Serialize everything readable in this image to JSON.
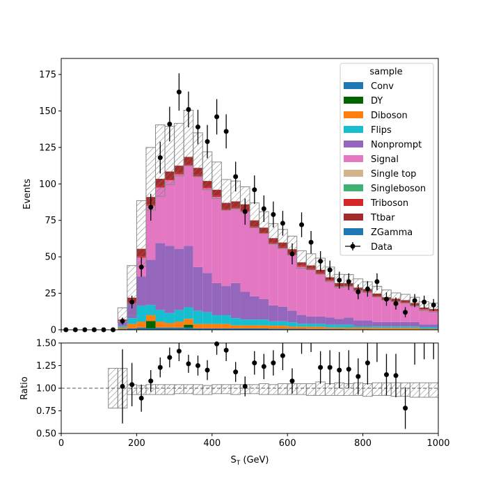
{
  "chart_data": [
    {
      "type": "bar",
      "subtype": "stacked-histogram",
      "ylabel": "Events",
      "xlim": [
        0,
        1000
      ],
      "ylim": [
        0,
        186
      ],
      "yticks": [
        0,
        25,
        50,
        75,
        100,
        125,
        150,
        175
      ],
      "bin_width": 25,
      "bin_edges_start": 0,
      "legend": {
        "title": "sample",
        "placement": "top-right"
      },
      "series": [
        {
          "name": "Conv",
          "color": "#1f77b4",
          "values": [
            0,
            0,
            0,
            0,
            0,
            0,
            0.5,
            1,
            1.5,
            1,
            1.5,
            1.5,
            1.5,
            1.5,
            1,
            1,
            1,
            1,
            1,
            1,
            1,
            1,
            0.8,
            0.8,
            0.7,
            0.7,
            0.6,
            0.6,
            0.5,
            0.5,
            0.4,
            0.4,
            0.4,
            0.3,
            0.3,
            0.3,
            0.3,
            0.3,
            0.2,
            0.2
          ]
        },
        {
          "name": "DY",
          "color": "#006400",
          "values": [
            0,
            0,
            0,
            0,
            0,
            0,
            0,
            0,
            0,
            5,
            0,
            0,
            0,
            2,
            0,
            0,
            0,
            0,
            0,
            0,
            0,
            0,
            0,
            0,
            0,
            0,
            0,
            0,
            0,
            0,
            0,
            0,
            0,
            0,
            0,
            0,
            0,
            0,
            0,
            0
          ]
        },
        {
          "name": "Diboson",
          "color": "#ff7f0e",
          "values": [
            0,
            0,
            0,
            0,
            0,
            0,
            1,
            3,
            4,
            4,
            4,
            3,
            4,
            4,
            3,
            3,
            3,
            3,
            2,
            2,
            2,
            2,
            2,
            2,
            1.5,
            1.5,
            1.5,
            1.5,
            1,
            1,
            1,
            1,
            1,
            1,
            1,
            1,
            1,
            1,
            0.5,
            0.5
          ]
        },
        {
          "name": "Flips",
          "color": "#17becf",
          "values": [
            0,
            0,
            0,
            0,
            0,
            0,
            1,
            4,
            11,
            7,
            8,
            7,
            8,
            8,
            9,
            8,
            6,
            6,
            5,
            4,
            4,
            4,
            3,
            3,
            3,
            2,
            2,
            2,
            2,
            2,
            2,
            1,
            1,
            1,
            1,
            1,
            1,
            1,
            1,
            1
          ]
        },
        {
          "name": "Nonprompt",
          "color": "#9467bd",
          "values": [
            0,
            0,
            0,
            0,
            0,
            0,
            3,
            10,
            20,
            31,
            46,
            46,
            42,
            42,
            30,
            27,
            22,
            20,
            24,
            19,
            16,
            14,
            11,
            10,
            8,
            6,
            5,
            5,
            5,
            4,
            5,
            4,
            4,
            3,
            3,
            3,
            3,
            3,
            2,
            2
          ]
        },
        {
          "name": "Signal",
          "color": "#e377c2",
          "values": [
            0,
            0,
            0,
            0,
            0,
            0,
            0.5,
            0,
            13,
            37,
            38,
            45,
            51,
            55,
            62,
            58,
            59,
            52,
            51,
            55,
            47,
            45,
            42,
            40,
            38,
            33,
            32,
            29,
            25,
            22,
            21,
            20,
            19,
            17,
            15,
            14,
            13,
            11,
            10,
            9
          ]
        },
        {
          "name": "Single top",
          "color": "#d2b48c",
          "values": [
            0,
            0,
            0,
            0,
            0,
            0,
            0,
            0,
            0,
            0,
            0,
            0,
            0,
            0,
            0,
            0,
            0,
            0,
            0,
            0,
            0,
            0,
            0,
            0,
            0,
            0,
            0,
            0,
            0,
            0,
            0,
            0,
            0,
            0,
            0,
            0,
            0,
            0,
            0,
            0
          ]
        },
        {
          "name": "Singleboson",
          "color": "#3cb371",
          "values": [
            0,
            0,
            0,
            0,
            0,
            0,
            0,
            0,
            0,
            0,
            0,
            0,
            0,
            0,
            0,
            0,
            0,
            0,
            0,
            0,
            0,
            0,
            0,
            0,
            0,
            0,
            0,
            0,
            0,
            0,
            0,
            0,
            0,
            0,
            0,
            0,
            0,
            0,
            0,
            0
          ]
        },
        {
          "name": "Triboson",
          "color": "#d62728",
          "values": [
            0,
            0,
            0,
            0,
            0,
            0,
            0.5,
            1,
            1,
            1,
            1,
            1,
            1,
            1,
            1,
            1,
            1,
            1,
            1,
            1,
            1,
            1,
            1,
            1,
            1,
            1,
            1,
            1,
            0.5,
            0.5,
            0.5,
            0.5,
            0.5,
            0.5,
            0.5,
            0.5,
            0.5,
            0.5,
            0.5,
            0.5
          ]
        },
        {
          "name": "Ttbar",
          "color": "#a52a2a",
          "values": [
            0,
            0,
            0,
            0,
            0,
            0,
            0.5,
            3,
            5,
            5,
            5,
            5,
            5,
            5,
            5,
            4,
            4,
            4,
            4,
            4,
            4,
            3,
            3,
            3,
            3,
            2,
            2,
            2,
            2,
            2,
            2,
            2,
            2,
            2,
            1.5,
            1.5,
            1.5,
            1.5,
            1,
            1
          ]
        },
        {
          "name": "ZGamma",
          "color": "#1f77b4",
          "values": [
            0,
            0,
            0,
            0,
            0,
            0,
            0,
            0,
            0,
            0,
            0,
            0,
            0,
            0,
            0,
            0,
            0,
            0,
            0,
            0,
            0,
            0,
            0,
            0,
            0,
            0,
            0,
            0,
            0,
            0,
            0,
            0,
            0,
            0,
            0,
            0,
            0,
            0,
            0,
            0
          ]
        }
      ],
      "uncertainty_band": {
        "up": [
          0,
          0,
          0,
          0,
          0,
          0,
          8,
          22,
          33,
          34,
          37,
          31,
          29,
          32,
          24,
          20,
          19,
          16,
          14,
          12,
          12,
          11,
          10,
          9,
          9,
          8,
          8,
          8,
          7,
          6,
          6,
          6,
          5,
          5,
          5,
          4,
          4,
          4,
          4,
          4
        ],
        "down": [
          0,
          0,
          0,
          0,
          0,
          0,
          2,
          12,
          12,
          9,
          12,
          9,
          7,
          6,
          6,
          6,
          6,
          5,
          5,
          5,
          5,
          4,
          4,
          4,
          4,
          4,
          3,
          3,
          3,
          3,
          2,
          2,
          2,
          2,
          2,
          2,
          2,
          2,
          2,
          2
        ]
      },
      "data": {
        "name": "Data",
        "x": [
          12.5,
          37.5,
          62.5,
          87.5,
          112.5,
          137.5,
          162.5,
          187.5,
          212.5,
          237.5,
          262.5,
          287.5,
          312.5,
          337.5,
          362.5,
          387.5,
          412.5,
          437.5,
          462.5,
          487.5,
          512.5,
          537.5,
          562.5,
          587.5,
          612.5,
          637.5,
          662.5,
          687.5,
          712.5,
          737.5,
          762.5,
          787.5,
          812.5,
          837.5,
          862.5,
          887.5,
          912.5,
          937.5,
          962.5,
          987.5
        ],
        "y": [
          0,
          0,
          0,
          0,
          0,
          0,
          6,
          19,
          43,
          84,
          118,
          141,
          163,
          151,
          139,
          129,
          146,
          136,
          105,
          81,
          96,
          83,
          79,
          73,
          52,
          72,
          60,
          47,
          41,
          34,
          33,
          26,
          28,
          33,
          21,
          18,
          12,
          20,
          19,
          17
        ],
        "err": [
          0,
          0,
          0,
          0,
          0,
          0,
          2.4,
          4.4,
          6.6,
          9.2,
          10.9,
          11.9,
          12.8,
          12.3,
          11.8,
          11.4,
          12.1,
          11.7,
          10.2,
          9,
          9.8,
          9.1,
          8.9,
          8.5,
          7.2,
          8.5,
          7.7,
          6.9,
          6.4,
          5.8,
          5.7,
          5.1,
          5.3,
          5.7,
          4.6,
          4.2,
          3.5,
          4.5,
          4.4,
          4.1
        ]
      }
    },
    {
      "type": "scatter",
      "subtype": "ratio",
      "xlabel": "S_T (GeV)",
      "ylabel": "Ratio",
      "xlim": [
        0,
        1000
      ],
      "ylim": [
        0.5,
        1.5
      ],
      "xticks": [
        0,
        200,
        400,
        600,
        800,
        1000
      ],
      "yticks": [
        0.5,
        0.75,
        1.0,
        1.25,
        1.5
      ],
      "reference_line": 1.0,
      "band": {
        "up": [
          0,
          0,
          0,
          0,
          0,
          1.22,
          1.22,
          1.04,
          1.03,
          1.04,
          1.04,
          1.04,
          1.04,
          1.04,
          1.04,
          1.03,
          1.04,
          1.04,
          1.04,
          1.04,
          1.04,
          1.05,
          1.04,
          1.05,
          1.05,
          1.05,
          1.05,
          1.07,
          1.05,
          1.06,
          1.05,
          1.06,
          1.05,
          1.06,
          1.06,
          1.06,
          1.06,
          1.06,
          1.06,
          1.06
        ],
        "down": [
          0,
          0,
          0,
          0,
          0,
          0.78,
          0.78,
          0.93,
          0.93,
          0.93,
          0.93,
          0.93,
          0.94,
          0.94,
          0.93,
          0.93,
          0.94,
          0.94,
          0.93,
          0.94,
          0.94,
          0.93,
          0.93,
          0.93,
          0.93,
          0.93,
          0.92,
          0.92,
          0.92,
          0.92,
          0.92,
          0.92,
          0.91,
          0.92,
          0.92,
          0.91,
          0.91,
          0.9,
          0.9,
          0.9
        ]
      },
      "x": [
        162.5,
        187.5,
        212.5,
        237.5,
        262.5,
        287.5,
        312.5,
        337.5,
        362.5,
        387.5,
        412.5,
        437.5,
        462.5,
        487.5,
        512.5,
        537.5,
        562.5,
        587.5,
        612.5,
        637.5,
        662.5,
        687.5,
        712.5,
        737.5,
        762.5,
        787.5,
        812.5,
        837.5,
        862.5,
        887.5,
        912.5,
        937.5,
        962.5,
        987.5
      ],
      "y": [
        1.02,
        1.04,
        0.89,
        1.08,
        1.23,
        1.34,
        1.41,
        1.27,
        1.25,
        1.2,
        1.49,
        1.42,
        1.18,
        1.02,
        1.28,
        1.24,
        1.28,
        1.36,
        1.08,
        1.56,
        1.6,
        1.23,
        1.23,
        1.2,
        1.21,
        1.13,
        1.28,
        1.55,
        1.15,
        1.14,
        0.78,
        1.53,
        1.6,
        1.6
      ],
      "err": [
        0.41,
        0.24,
        0.15,
        0.12,
        0.11,
        0.11,
        0.11,
        0.1,
        0.11,
        0.11,
        0.12,
        0.12,
        0.11,
        0.11,
        0.13,
        0.14,
        0.14,
        0.16,
        0.14,
        0.18,
        0.2,
        0.18,
        0.19,
        0.2,
        0.21,
        0.2,
        0.24,
        0.26,
        0.23,
        0.24,
        0.23,
        0.27,
        0.28,
        0.28
      ]
    }
  ],
  "legend_title": "sample",
  "legend_items": [
    "Conv",
    "DY",
    "Diboson",
    "Flips",
    "Nonprompt",
    "Signal",
    "Single top",
    "Singleboson",
    "Triboson",
    "Ttbar",
    "ZGamma",
    "Data"
  ],
  "legend_colors": [
    "#1f77b4",
    "#006400",
    "#ff7f0e",
    "#17becf",
    "#9467bd",
    "#e377c2",
    "#d2b48c",
    "#3cb371",
    "#d62728",
    "#a52a2a",
    "#1f77b4",
    "#000000"
  ],
  "top_ylabel": "Events",
  "bottom_ylabel": "Ratio",
  "xlabel_main": "S",
  "xlabel_sub": "T",
  "xlabel_unit": " (GeV)",
  "top_ytick_labels": [
    "0",
    "25",
    "50",
    "75",
    "100",
    "125",
    "150",
    "175"
  ],
  "bottom_ytick_labels": [
    "0.50",
    "0.75",
    "1.00",
    "1.25",
    "1.50"
  ],
  "xtick_labels": [
    "0",
    "200",
    "400",
    "600",
    "800",
    "1000"
  ]
}
